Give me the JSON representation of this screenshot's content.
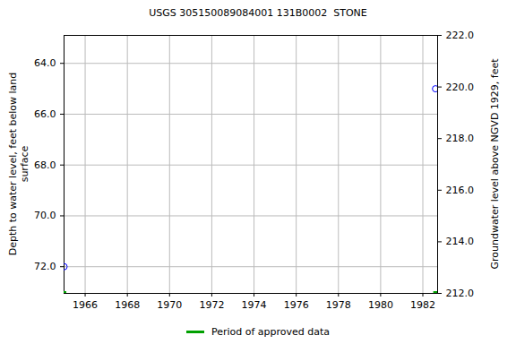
{
  "chart_data": {
    "type": "scatter",
    "title": "USGS 305150089084001 131B0002  STONE",
    "xlabel": null,
    "ylabel": "Depth to water level, feet below land\nsurface",
    "y2label": "Groundwater level above NGVD 1929, feet",
    "x": [
      1965.0,
      1982.6
    ],
    "series": [
      {
        "color": "#0000ff",
        "marker": "circle-open",
        "values": [
          72.0,
          65.0
        ]
      }
    ],
    "periods": [
      {
        "name": "Period of approved data",
        "color": "#00a000",
        "x": [
          1965.0,
          1982.6
        ]
      }
    ],
    "xlim": [
      1965.0,
      1982.7
    ],
    "xticks": [
      1966,
      1968,
      1970,
      1972,
      1974,
      1976,
      1978,
      1980,
      1982
    ],
    "ylim": [
      73.05,
      62.9
    ],
    "yticks": [
      {
        "value": 64,
        "label": "64.0"
      },
      {
        "value": 66,
        "label": "66.0"
      },
      {
        "value": 68,
        "label": "68.0"
      },
      {
        "value": 70,
        "label": "70.0"
      },
      {
        "value": 72,
        "label": "72.0"
      }
    ],
    "y2lim": [
      212,
      222
    ],
    "y2ticks": [
      {
        "value": 212,
        "label": "212.0"
      },
      {
        "value": 214,
        "label": "214.0"
      },
      {
        "value": 216,
        "label": "216.0"
      },
      {
        "value": 218,
        "label": "218.0"
      },
      {
        "value": 220,
        "label": "220.0"
      },
      {
        "value": 222,
        "label": "222.0"
      }
    ],
    "grid": true,
    "legend": "bottom"
  }
}
